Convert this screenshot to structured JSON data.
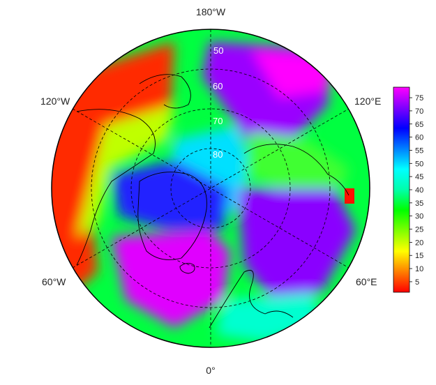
{
  "map": {
    "projection": "north-polar-stereographic",
    "color_scale": {
      "min": 1,
      "max": 79,
      "ticks": [
        "75",
        "70",
        "65",
        "60",
        "55",
        "50",
        "45",
        "40",
        "35",
        "30",
        "25",
        "20",
        "15",
        "10",
        "5"
      ],
      "tick_values": [
        75,
        70,
        65,
        60,
        55,
        50,
        45,
        40,
        35,
        30,
        25,
        20,
        15,
        10,
        5
      ],
      "colors": [
        "#ff0000",
        "#ff7f00",
        "#ffff00",
        "#7fff00",
        "#00ff00",
        "#00ffaa",
        "#00ffff",
        "#0080ff",
        "#0000ff",
        "#7f00ff",
        "#ff00ff"
      ]
    },
    "longitude_labels": {
      "top": "180°W",
      "bottom": "0°",
      "upper_left": "120°W",
      "upper_right": "120°E",
      "lower_left": "60°W",
      "lower_right": "60°E"
    },
    "latitude_labels": [
      "50",
      "60",
      "70",
      "80"
    ]
  }
}
